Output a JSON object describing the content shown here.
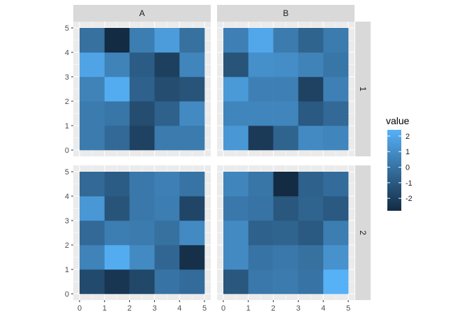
{
  "chart_data": {
    "type": "heatmap",
    "facet_cols": [
      "A",
      "B"
    ],
    "facet_rows": [
      "1",
      "2"
    ],
    "x_ticks": [
      "0",
      "1",
      "2",
      "3",
      "4",
      "5"
    ],
    "y_ticks": [
      "0",
      "1",
      "2",
      "3",
      "4",
      "5"
    ],
    "xlim": [
      0,
      5
    ],
    "ylim": [
      0,
      5
    ],
    "grid": true,
    "panels": [
      {
        "row": "1",
        "col": "A",
        "values": [
          [
            0.3,
            -0.4,
            -1.9,
            0.3,
            0.3
          ],
          [
            0.3,
            0.1,
            -1.5,
            -0.7,
            0.9
          ],
          [
            0.6,
            2.2,
            -0.7,
            -1.5,
            -1.2
          ],
          [
            1.9,
            0.6,
            -0.9,
            -2.0,
            0.7
          ],
          [
            -0.1,
            -2.8,
            0.4,
            1.6,
            -0.1
          ]
        ]
      },
      {
        "row": "1",
        "col": "B",
        "values": [
          [
            1.4,
            -2.2,
            -0.6,
            0.9,
            0.7
          ],
          [
            0.7,
            0.7,
            0.7,
            -1.0,
            -0.4
          ],
          [
            1.5,
            0.5,
            0.5,
            -1.9,
            0.5
          ],
          [
            -1.2,
            1.1,
            1.0,
            0.6,
            0.1
          ],
          [
            0.5,
            2.0,
            0.3,
            -0.6,
            0.3
          ]
        ]
      },
      {
        "row": "2",
        "col": "A",
        "values": [
          [
            -1.6,
            -2.4,
            -1.7,
            0.0,
            -0.3
          ],
          [
            0.6,
            2.2,
            0.9,
            -0.5,
            -2.6
          ],
          [
            -0.4,
            0.4,
            0.3,
            -0.1,
            0.9
          ],
          [
            1.4,
            -1.2,
            0.2,
            0.4,
            -1.8
          ],
          [
            -0.4,
            -0.9,
            0.2,
            0.5,
            0.0
          ]
        ]
      },
      {
        "row": "2",
        "col": "B",
        "values": [
          [
            -1.1,
            0.2,
            0.3,
            0.0,
            2.4
          ],
          [
            0.9,
            0.0,
            0.2,
            -0.1,
            1.2
          ],
          [
            0.9,
            -0.7,
            -0.6,
            -1.0,
            0.4
          ],
          [
            0.2,
            0.0,
            -1.1,
            -0.6,
            -1.0
          ],
          [
            0.7,
            0.1,
            -2.8,
            -0.7,
            -0.3
          ]
        ]
      }
    ],
    "legend": {
      "title": "value",
      "breaks": [
        {
          "value": 2,
          "label": "2"
        },
        {
          "value": 1,
          "label": "1"
        },
        {
          "value": 0,
          "label": "0"
        },
        {
          "value": -1,
          "label": "-1"
        },
        {
          "value": -2,
          "label": "-2"
        }
      ],
      "limits": [
        -2.8,
        2.4
      ],
      "low_color": "#132B43",
      "high_color": "#56B1F7",
      "position": "right"
    },
    "colors": {
      "panel_bg": "#EBEBEB",
      "grid": "#FFFFFF",
      "strip_bg": "#D9D9D9",
      "strip_text": "#1A1A1A",
      "tick_text": "#4D4D4D",
      "tick_line": "#333333"
    }
  }
}
